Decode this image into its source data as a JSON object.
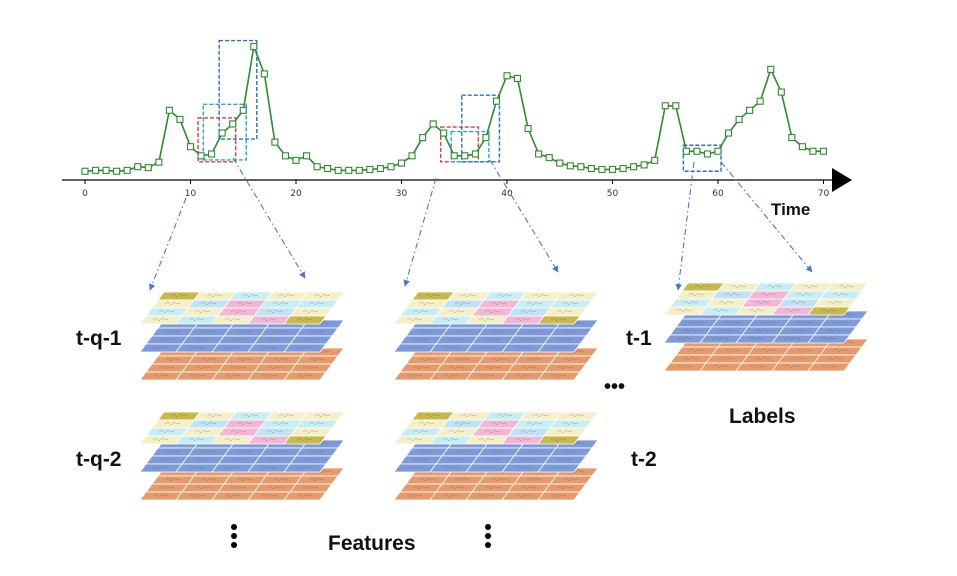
{
  "chart_data": {
    "type": "line",
    "xlabel": "Time",
    "ylabel": "",
    "xlim": [
      -2,
      70
    ],
    "ylim": [
      0,
      14
    ],
    "x_ticks": [
      0,
      10,
      20,
      30,
      40,
      50,
      60,
      70
    ],
    "series": [
      {
        "color": "#2e8b2e",
        "x": [
          0,
          1,
          2,
          3,
          4,
          5,
          6,
          7,
          8,
          9,
          10,
          11,
          12,
          13,
          14,
          15,
          16,
          17,
          18,
          19,
          20,
          21,
          22,
          23,
          24,
          25,
          26,
          27,
          28,
          29,
          30,
          31,
          32,
          33,
          34,
          35,
          36,
          37,
          38,
          39,
          40,
          41,
          42,
          43,
          44,
          45,
          46,
          47,
          48,
          49,
          50,
          51,
          52,
          53,
          54,
          55,
          56,
          57,
          58,
          59,
          60,
          61,
          62,
          63,
          64,
          65,
          66,
          67,
          68,
          69,
          70
        ],
        "y": [
          0.3,
          0.4,
          0.4,
          0.3,
          0.4,
          0.8,
          0.7,
          1.3,
          7.0,
          6.0,
          3.0,
          2.0,
          2.2,
          4.5,
          5.5,
          7.0,
          14.0,
          11.0,
          3.5,
          2.0,
          1.5,
          2.0,
          0.8,
          0.6,
          0.4,
          0.4,
          0.4,
          0.5,
          0.6,
          0.8,
          1.2,
          2.0,
          4.0,
          5.5,
          4.5,
          2.0,
          2.0,
          2.2,
          4.0,
          8.0,
          10.8,
          10.5,
          5.0,
          2.2,
          1.8,
          1.2,
          0.9,
          0.8,
          0.6,
          0.5,
          0.5,
          0.6,
          0.8,
          1.0,
          1.5,
          7.5,
          7.5,
          2.5,
          2.5,
          2.2,
          2.5,
          4.5,
          6.0,
          7.0,
          8.0,
          11.5,
          9.0,
          4.0,
          3.0,
          2.5,
          2.5
        ]
      }
    ],
    "windows": [
      {
        "color": "#e03a3a",
        "x0": 11,
        "x1": 14
      },
      {
        "color": "#29a3d8",
        "x0": 11.5,
        "x1": 15
      },
      {
        "color": "#2a6fc4",
        "x0": 13,
        "x1": 16
      },
      {
        "color": "#e03a3a",
        "x0": 34,
        "x1": 37
      },
      {
        "color": "#29a3d8",
        "x0": 35,
        "x1": 38
      },
      {
        "color": "#2a6fc4",
        "x0": 36,
        "x1": 39
      },
      {
        "color": "#2a6fc4",
        "x0": 57,
        "x1": 60
      }
    ]
  },
  "labels": {
    "tq1": "t-q-1",
    "tq2": "t-q-2",
    "t1": "t-1",
    "t2": "t-2",
    "labels": "Labels",
    "features": "Features",
    "ellipsis": "•••"
  },
  "colors": {
    "axis": "#000000",
    "line": "#2e8b2e",
    "arrow": "#4a7ac4",
    "layer_top_palette": [
      "#f5efc6",
      "#c7eef2",
      "#f4b6d6",
      "#bfe2f4",
      "#c8b94a"
    ],
    "layer_mid": "#7f9ad8",
    "layer_bottom": "#e59a6b"
  },
  "icons": {
    "vertical_dots": "vertical-ellipsis-icon",
    "horizontal_dots": "horizontal-ellipsis-icon"
  }
}
